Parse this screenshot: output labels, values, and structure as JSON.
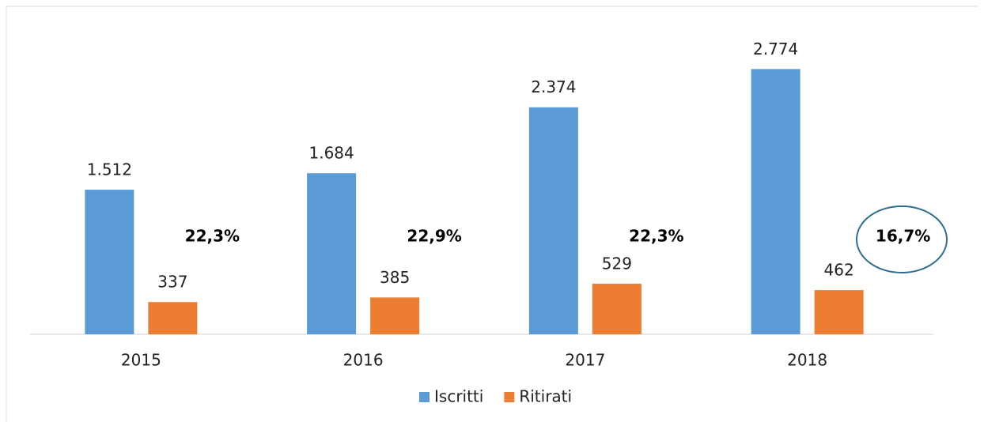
{
  "chart_data": {
    "type": "bar",
    "categories": [
      "2015",
      "2016",
      "2017",
      "2018"
    ],
    "series": [
      {
        "name": "Iscritti",
        "color": "#5b9bd5",
        "values": [
          1512,
          1684,
          2374,
          2774
        ],
        "value_labels": [
          "1.512",
          "1.684",
          "2.374",
          "2.774"
        ]
      },
      {
        "name": "Ritirati",
        "color": "#ed7d31",
        "values": [
          337,
          385,
          529,
          462
        ]
      }
    ],
    "annotations": [
      "22,3%",
      "22,9%",
      "22,3%",
      "16,7%"
    ],
    "ylim": [
      0,
      3000
    ]
  }
}
